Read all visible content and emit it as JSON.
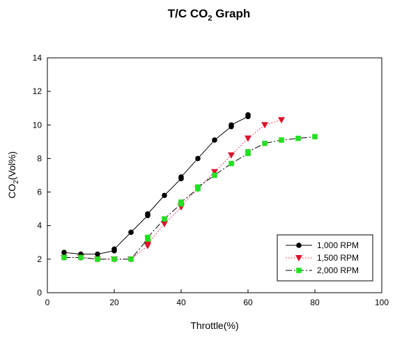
{
  "chart_data": {
    "type": "line",
    "title_main": "T/C CO",
    "title_sub": "2",
    "title_tail": " Graph",
    "xlabel": "Throttle(%)",
    "ylabel_main": "CO",
    "ylabel_sub": "2",
    "ylabel_tail": "(Vol%)",
    "xlim": [
      0,
      100
    ],
    "ylim": [
      0,
      14
    ],
    "xticks": [
      "0",
      "20",
      "40",
      "60",
      "80",
      "100"
    ],
    "yticks": [
      "0",
      "2",
      "4",
      "6",
      "8",
      "10",
      "12",
      "14"
    ],
    "legend_position": "bottom-right",
    "series": [
      {
        "name": "1,000 RPM",
        "color": "#000000",
        "marker": "circle",
        "line": "solid",
        "points": [
          [
            5,
            2.4
          ],
          [
            10,
            2.3
          ],
          [
            15,
            2.3
          ],
          [
            20,
            2.5
          ],
          [
            20,
            2.6
          ],
          [
            25,
            3.6
          ],
          [
            30,
            4.6
          ],
          [
            30,
            4.7
          ],
          [
            35,
            5.8
          ],
          [
            40,
            6.8
          ],
          [
            40,
            6.9
          ],
          [
            45,
            8.0
          ],
          [
            50,
            9.1
          ],
          [
            55,
            9.9
          ],
          [
            55,
            10.0
          ],
          [
            60,
            10.5
          ],
          [
            60,
            10.6
          ]
        ]
      },
      {
        "name": "1,500 RPM",
        "color": "#e0102a",
        "marker": "triangle-down",
        "line": "dotted",
        "points": [
          [
            5,
            2.1
          ],
          [
            10,
            2.1
          ],
          [
            15,
            2.0
          ],
          [
            20,
            2.0
          ],
          [
            25,
            2.0
          ],
          [
            30,
            2.8
          ],
          [
            30,
            2.9
          ],
          [
            35,
            4.1
          ],
          [
            40,
            5.1
          ],
          [
            40,
            5.2
          ],
          [
            45,
            6.2
          ],
          [
            50,
            7.2
          ],
          [
            55,
            8.2
          ],
          [
            60,
            9.2
          ],
          [
            65,
            10.0
          ],
          [
            70,
            10.3
          ]
        ]
      },
      {
        "name": "2,000 RPM",
        "color": "#22e022",
        "marker": "square",
        "line": "dashdot",
        "points": [
          [
            5,
            2.1
          ],
          [
            10,
            2.1
          ],
          [
            15,
            2.0
          ],
          [
            20,
            2.0
          ],
          [
            25,
            2.0
          ],
          [
            30,
            3.2
          ],
          [
            30,
            3.3
          ],
          [
            35,
            4.4
          ],
          [
            40,
            5.3
          ],
          [
            40,
            5.4
          ],
          [
            45,
            6.2
          ],
          [
            45,
            6.3
          ],
          [
            50,
            7.0
          ],
          [
            55,
            7.7
          ],
          [
            60,
            8.3
          ],
          [
            60,
            8.4
          ],
          [
            65,
            8.9
          ],
          [
            70,
            9.1
          ],
          [
            75,
            9.2
          ],
          [
            80,
            9.3
          ]
        ]
      }
    ]
  }
}
